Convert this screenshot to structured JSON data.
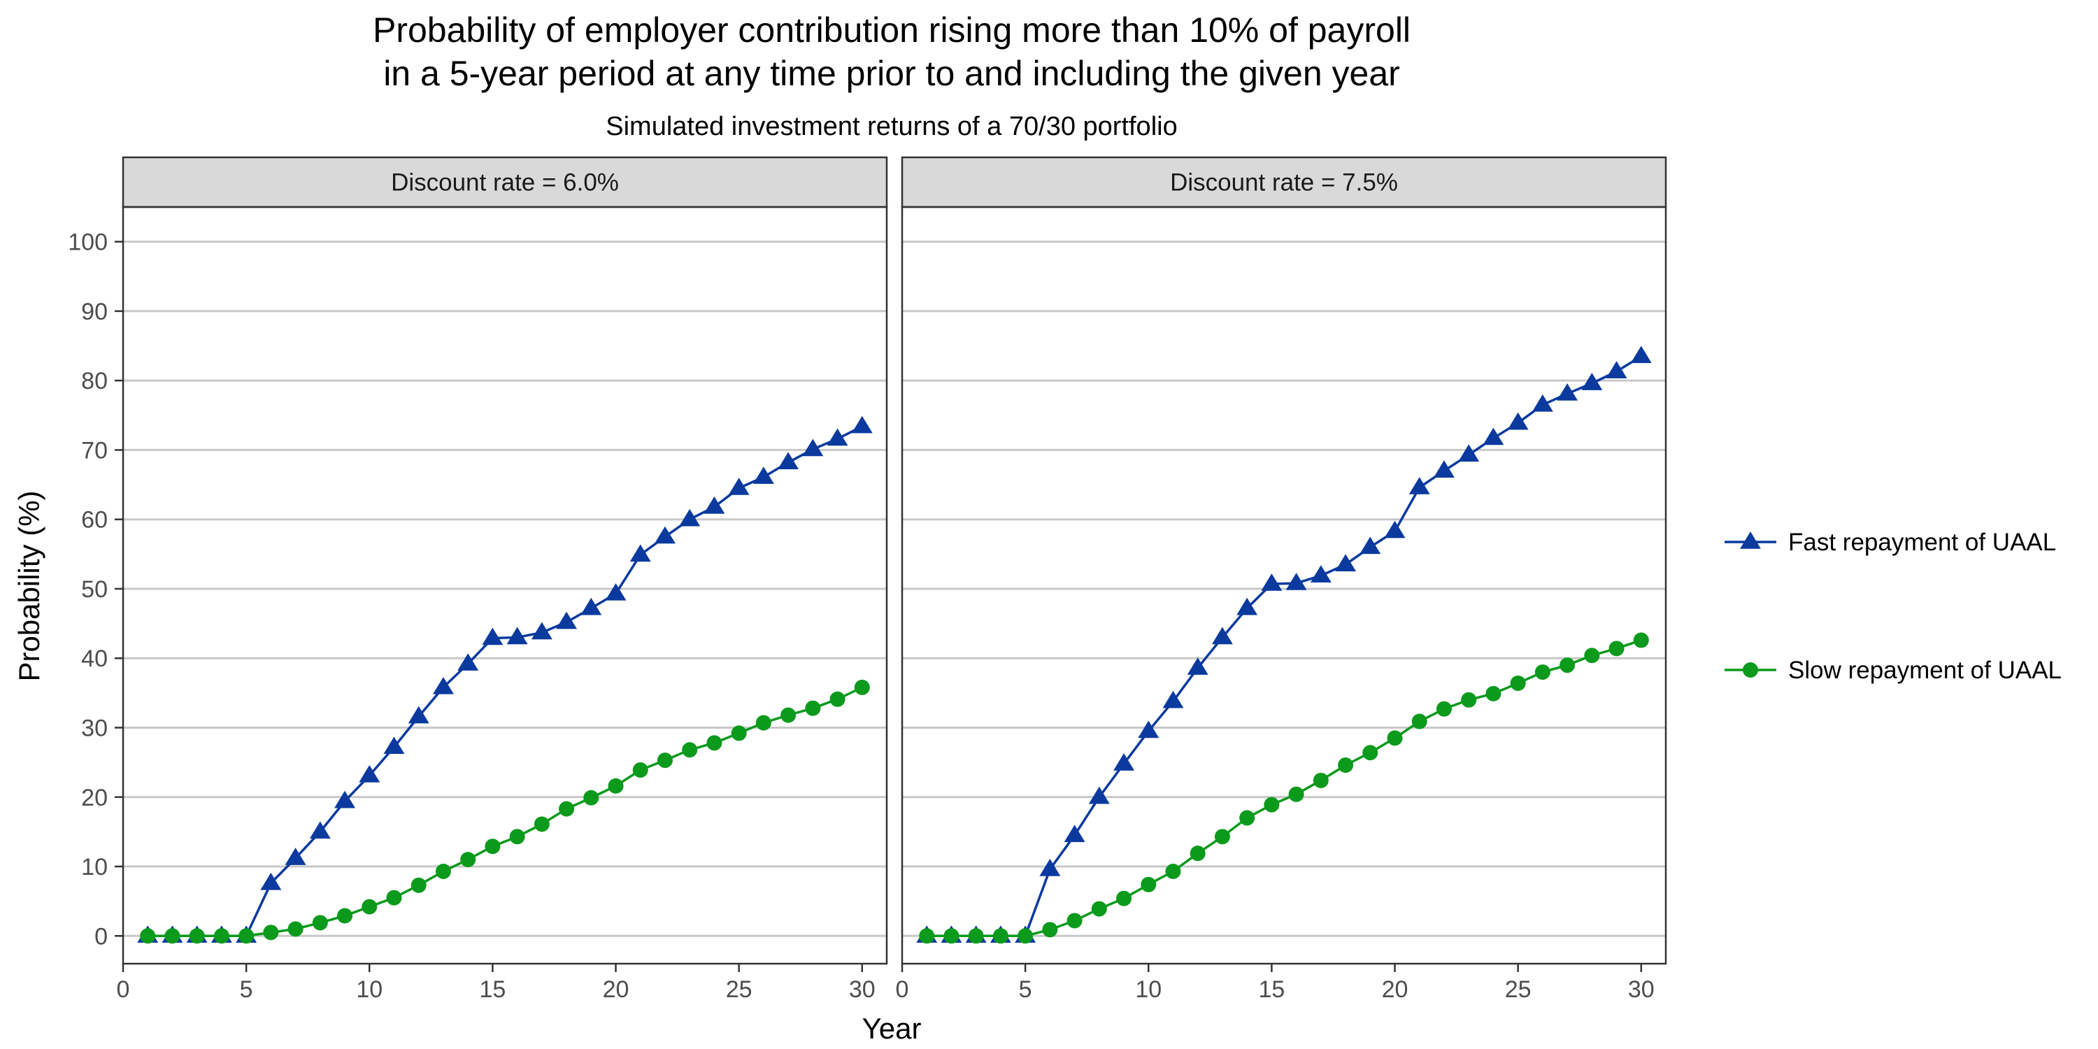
{
  "chart_data": {
    "type": "line",
    "title_line1": "Probability of employer contribution rising more than 10% of payroll",
    "title_line2": "in a 5-year period at any time prior to and including the given year",
    "subtitle": "Simulated investment returns of a 70/30 portfolio",
    "xlabel": "Year",
    "ylabel": "Probability (%)",
    "xlim": [
      0,
      31
    ],
    "ylim": [
      -4,
      105
    ],
    "xticks": [
      0,
      5,
      10,
      15,
      20,
      25,
      30
    ],
    "yticks": [
      0,
      10,
      20,
      30,
      40,
      50,
      60,
      70,
      80,
      90,
      100
    ],
    "grid": "horizontal major",
    "legend_position": "right",
    "x": [
      1,
      2,
      3,
      4,
      5,
      6,
      7,
      8,
      9,
      10,
      11,
      12,
      13,
      14,
      15,
      16,
      17,
      18,
      19,
      20,
      21,
      22,
      23,
      24,
      25,
      26,
      27,
      28,
      29,
      30
    ],
    "panels": [
      {
        "label": "Discount rate = 6.0%",
        "series": [
          {
            "name": "Fast repayment of UAAL",
            "values": [
              0,
              0,
              0,
              0,
              0,
              7.6,
              11.2,
              15.0,
              19.4,
              23.1,
              27.2,
              31.6,
              35.8,
              39.2,
              42.9,
              43.0,
              43.7,
              45.2,
              47.2,
              49.3,
              54.9,
              57.5,
              60.0,
              61.8,
              64.5,
              66.1,
              68.2,
              70.1,
              71.6,
              73.4
            ]
          },
          {
            "name": "Slow repayment of UAAL",
            "values": [
              0,
              0,
              0,
              0,
              0,
              0.5,
              1.0,
              1.9,
              2.9,
              4.2,
              5.5,
              7.3,
              9.3,
              11.0,
              12.9,
              14.3,
              16.1,
              18.3,
              19.9,
              21.6,
              23.9,
              25.3,
              26.8,
              27.8,
              29.2,
              30.7,
              31.8,
              32.8,
              34.1,
              35.8
            ]
          }
        ]
      },
      {
        "label": "Discount rate = 7.5%",
        "series": [
          {
            "name": "Fast repayment of UAAL",
            "values": [
              0,
              0,
              0,
              0,
              0,
              9.6,
              14.5,
              20.0,
              24.8,
              29.5,
              33.8,
              38.6,
              43.0,
              47.2,
              50.7,
              50.8,
              51.9,
              53.5,
              56.0,
              58.3,
              64.6,
              67.0,
              69.3,
              71.7,
              73.9,
              76.5,
              78.1,
              79.6,
              81.3,
              83.5
            ]
          },
          {
            "name": "Slow repayment of UAAL",
            "values": [
              0,
              0,
              0,
              0,
              0,
              0.9,
              2.2,
              3.9,
              5.4,
              7.4,
              9.3,
              11.9,
              14.3,
              17.0,
              18.9,
              20.4,
              22.4,
              24.6,
              26.4,
              28.5,
              30.9,
              32.7,
              34.0,
              34.9,
              36.4,
              38.0,
              39.0,
              40.4,
              41.4,
              42.6
            ]
          }
        ]
      }
    ],
    "legend": [
      {
        "name": "Fast repayment of UAAL",
        "color": "#0a3a9e",
        "marker": "triangle"
      },
      {
        "name": "Slow repayment of UAAL",
        "color": "#0b9a1c",
        "marker": "circle"
      }
    ],
    "colors": {
      "fast": "#0a3a9e",
      "slow": "#0b9a1c",
      "strip": "#d9d9d9",
      "grid": "#c8c8c8"
    }
  }
}
